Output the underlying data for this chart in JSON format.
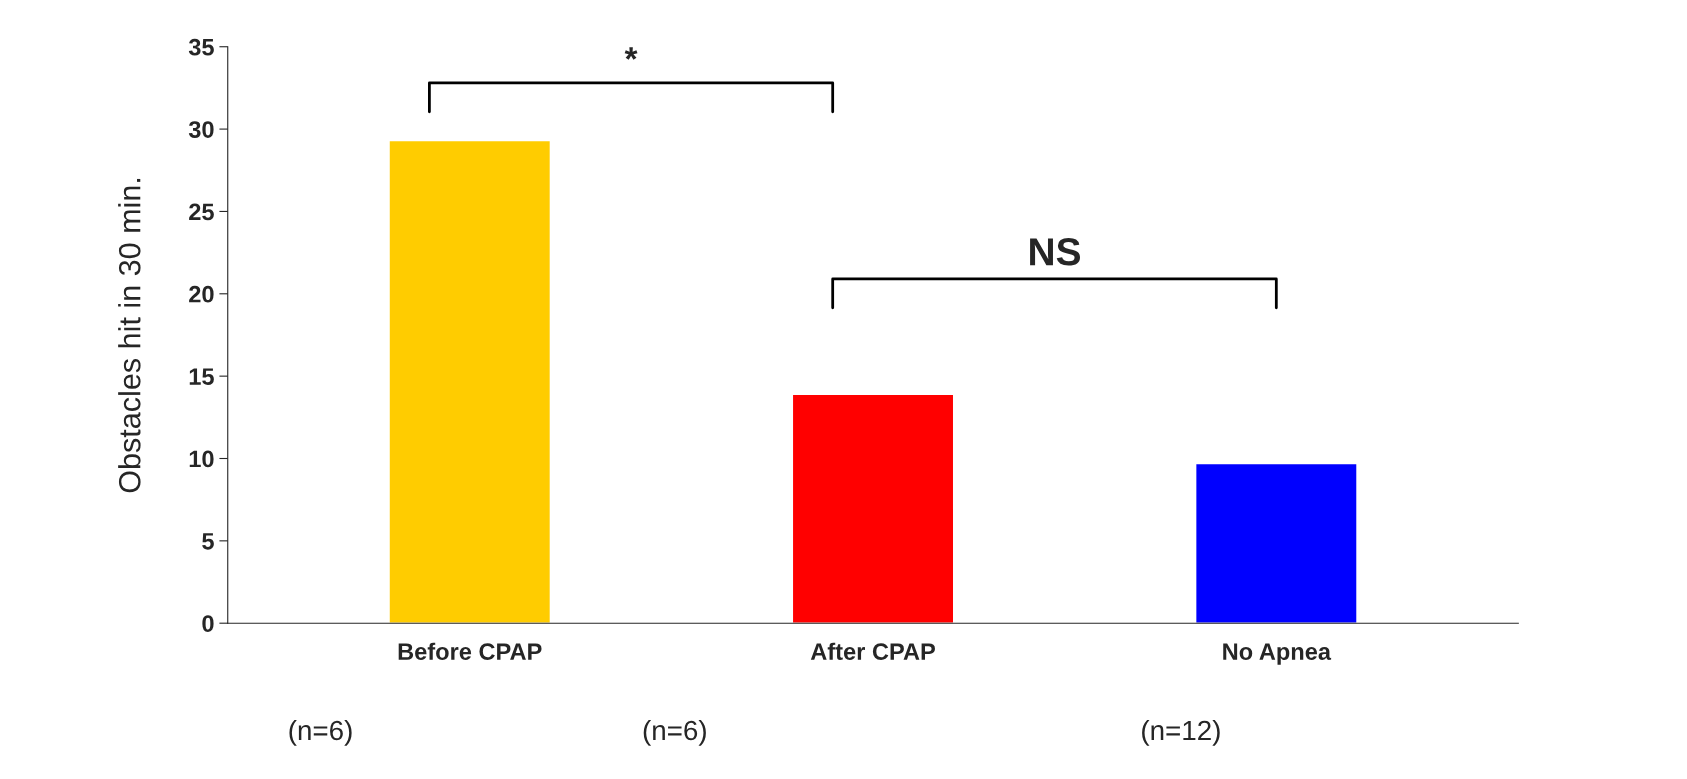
{
  "chart_data": {
    "type": "bar",
    "ylabel": "Obstacles hit in 30 min.",
    "categories": [
      "Before CPAP",
      "After CPAP",
      "No Apnea"
    ],
    "values": [
      29.3,
      13.9,
      9.7
    ],
    "colors": [
      "#ffcc00",
      "#ff0000",
      "#0000ff"
    ],
    "ylim": [
      0,
      35
    ],
    "yticks": [
      0,
      5,
      10,
      15,
      20,
      25,
      30,
      35
    ],
    "grid": false,
    "legend": false,
    "annotations": [
      "*",
      "NS",
      "(n=6)",
      "(n=6)",
      "(n=12)"
    ]
  }
}
